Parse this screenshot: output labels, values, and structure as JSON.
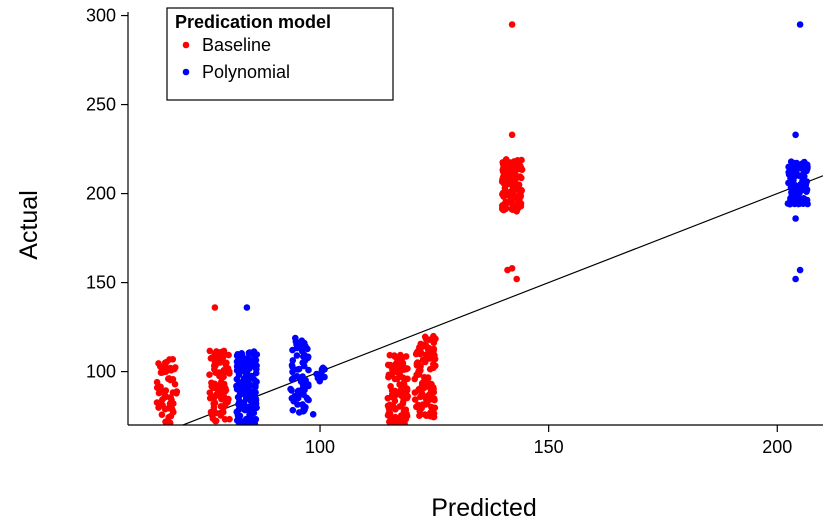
{
  "chart_data": {
    "type": "scatter",
    "title": "",
    "xlabel": "Predicted",
    "ylabel": "Actual",
    "xlim": [
      58,
      210
    ],
    "ylim": [
      70,
      302
    ],
    "x_ticks": [
      100,
      150,
      200
    ],
    "y_ticks": [
      100,
      150,
      200,
      250,
      300
    ],
    "grid": false,
    "legend": {
      "title": "Predication model",
      "position": "top-left"
    },
    "reference_line": {
      "description": "identity y = x",
      "slope": 1,
      "intercept": 0
    },
    "series": [
      {
        "name": "Baseline",
        "color": "#ff0000",
        "clusters": [
          {
            "x": 66.5,
            "jitter": 2.2,
            "ymin": 71,
            "ymax": 107,
            "count": 60,
            "outliers": []
          },
          {
            "x": 78,
            "jitter": 2.3,
            "ymin": 72,
            "ymax": 112,
            "count": 95,
            "outliers": [
              {
                "x": 77,
                "y": 136
              }
            ]
          },
          {
            "x": 117,
            "jitter": 2.2,
            "ymin": 70,
            "ymax": 110,
            "count": 100,
            "outliers": []
          },
          {
            "x": 123,
            "jitter": 2.3,
            "ymin": 74,
            "ymax": 120,
            "count": 110,
            "outliers": []
          },
          {
            "x": 142,
            "jitter": 2.2,
            "ymin": 190,
            "ymax": 220,
            "count": 130,
            "outliers": [
              {
                "x": 142,
                "y": 295
              },
              {
                "x": 142,
                "y": 233
              },
              {
                "x": 141,
                "y": 157
              },
              {
                "x": 142,
                "y": 158
              },
              {
                "x": 143,
                "y": 152
              }
            ]
          }
        ]
      },
      {
        "name": "Polynomial",
        "color": "#0000ff",
        "clusters": [
          {
            "x": 84,
            "jitter": 2.3,
            "ymin": 70,
            "ymax": 112,
            "count": 150,
            "outliers": [
              {
                "x": 84,
                "y": 136
              }
            ]
          },
          {
            "x": 95.5,
            "jitter": 2.0,
            "ymin": 77,
            "ymax": 119,
            "count": 70,
            "outliers": []
          },
          {
            "x": 100,
            "jitter": 1.0,
            "ymin": 94,
            "ymax": 103,
            "count": 14,
            "outliers": [
              {
                "x": 98.5,
                "y": 76
              }
            ]
          },
          {
            "x": 204.5,
            "jitter": 2.2,
            "ymin": 194,
            "ymax": 218,
            "count": 120,
            "outliers": [
              {
                "x": 205,
                "y": 295
              },
              {
                "x": 204,
                "y": 233
              },
              {
                "x": 205,
                "y": 157
              },
              {
                "x": 204,
                "y": 152
              },
              {
                "x": 204,
                "y": 186
              }
            ]
          }
        ]
      }
    ]
  }
}
